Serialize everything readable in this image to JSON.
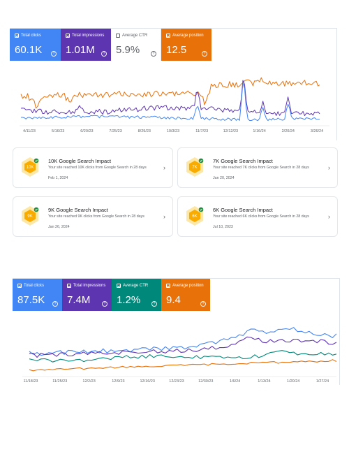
{
  "colors": {
    "clicks": "#4285f4",
    "impressions": "#5e35b1",
    "ctr": "#00897b",
    "position": "#e8710a",
    "hex_outer": "#fde7a7",
    "hex_inner": "#f9ab00",
    "badge": "#1e8e3e"
  },
  "panel1": {
    "cards": [
      {
        "label": "Total clicks",
        "value": "60.1K",
        "checked": true
      },
      {
        "label": "Total impressions",
        "value": "1.01M",
        "checked": true
      },
      {
        "label": "Average CTR",
        "value": "5.9%",
        "checked": false
      },
      {
        "label": "Average position",
        "value": "12.5",
        "checked": true
      }
    ],
    "xticks": [
      "4/11/23",
      "5/16/23",
      "6/20/23",
      "7/25/23",
      "8/29/23",
      "10/3/23",
      "11/7/23",
      "12/12/23",
      "1/16/24",
      "2/20/24",
      "3/26/24"
    ]
  },
  "achievements": [
    {
      "hex_label": "10K",
      "title": "10K Google Search Impact",
      "desc": "Your site reached 10K clicks from Google Search in 28 days",
      "date": "Feb 1, 2024"
    },
    {
      "hex_label": "7K",
      "title": "7K Google Search Impact",
      "desc": "Your site reached 7K clicks from Google Search in 28 days",
      "date": "Jan 20, 2024"
    },
    {
      "hex_label": "9K",
      "title": "9K Google Search Impact",
      "desc": "Your site reached 9K clicks from Google Search in 28 days",
      "date": "Jan 26, 2024"
    },
    {
      "hex_label": "6K",
      "title": "6K Google Search Impact",
      "desc": "Your site reached 6K clicks from Google Search in 28 days",
      "date": "Jul 10, 2023"
    }
  ],
  "panel2": {
    "cards": [
      {
        "label": "Total clicks",
        "value": "87.5K",
        "checked": true
      },
      {
        "label": "Total impressions",
        "value": "7.4M",
        "checked": true
      },
      {
        "label": "Average CTR",
        "value": "1.2%",
        "checked": true
      },
      {
        "label": "Average position",
        "value": "9.4",
        "checked": true
      }
    ],
    "xticks": [
      "11/18/23",
      "11/25/23",
      "12/2/23",
      "12/9/23",
      "12/16/23",
      "12/23/23",
      "12/30/23",
      "1/6/24",
      "1/13/24",
      "1/20/24",
      "1/27/24"
    ]
  }
}
